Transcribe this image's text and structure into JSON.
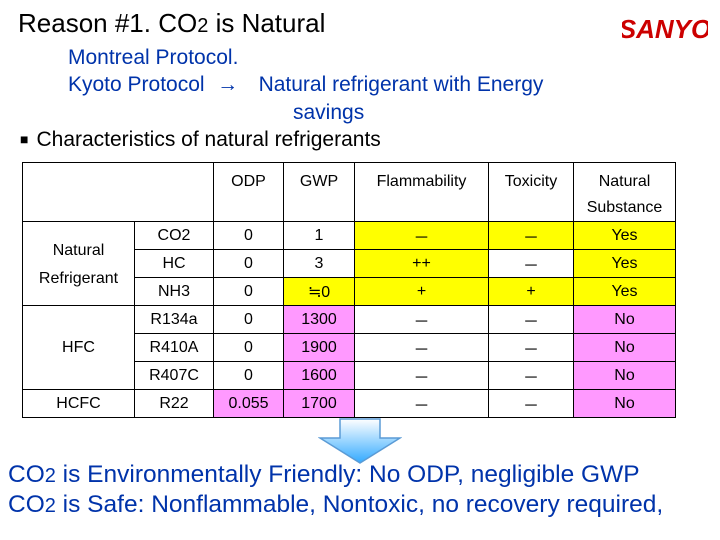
{
  "title": {
    "prefix": "Reason #1.  CO",
    "sub": "2",
    "suffix": " is Natural"
  },
  "logo": {
    "text": "SANYO",
    "color": "#cc0000"
  },
  "protocols": {
    "line1": "Montreal Protocol.",
    "line2_left": "Kyoto Protocol",
    "arrow": "→",
    "line2_right": "Natural refrigerant with Energy",
    "line3": "savings"
  },
  "section_heading": {
    "bullet": "■",
    "text": "Characteristics of natural refrigerants"
  },
  "table": {
    "headers": {
      "odp": "ODP",
      "gwp": "GWP",
      "flammability": "Flammability",
      "toxicity": "Toxicity",
      "natural_line1": "Natural",
      "natural_line2": "Substance"
    },
    "groups": {
      "natural_line1": "Natural",
      "natural_line2": "Refrigerant",
      "hfc": "HFC",
      "hcfc": "HCFC"
    },
    "rows": [
      {
        "name": "CO2",
        "odp": "0",
        "gwp": "1",
        "flam": "－",
        "tox": "－",
        "natural": "Yes"
      },
      {
        "name": "HC",
        "odp": "0",
        "gwp": "3",
        "flam": "++",
        "tox": "－",
        "natural": "Yes"
      },
      {
        "name": "NH3",
        "odp": "0",
        "gwp": "≒0",
        "flam": "+",
        "tox": "+",
        "natural": "Yes"
      },
      {
        "name": "R134a",
        "odp": "0",
        "gwp": "1300",
        "flam": "－",
        "tox": "－",
        "natural": "No"
      },
      {
        "name": "R410A",
        "odp": "0",
        "gwp": "1900",
        "flam": "－",
        "tox": "－",
        "natural": "No"
      },
      {
        "name": "R407C",
        "odp": "0",
        "gwp": "1600",
        "flam": "－",
        "tox": "－",
        "natural": "No"
      },
      {
        "name": "R22",
        "odp": "0.055",
        "gwp": "1700",
        "flam": "－",
        "tox": "－",
        "natural": "No"
      }
    ],
    "colors": {
      "highlight_yes": "#ffff00",
      "highlight_no": "#ff99ff"
    }
  },
  "conclusion": {
    "line1_prefix": "CO",
    "line1_sub": "2",
    "line1_suffix": " is Environmentally Friendly: No ODP, negligible GWP",
    "line2_prefix": "CO",
    "line2_sub": "2",
    "line2_suffix": " is Safe: Nonflammable, Nontoxic, no recovery required,",
    "color": "#0033aa"
  }
}
